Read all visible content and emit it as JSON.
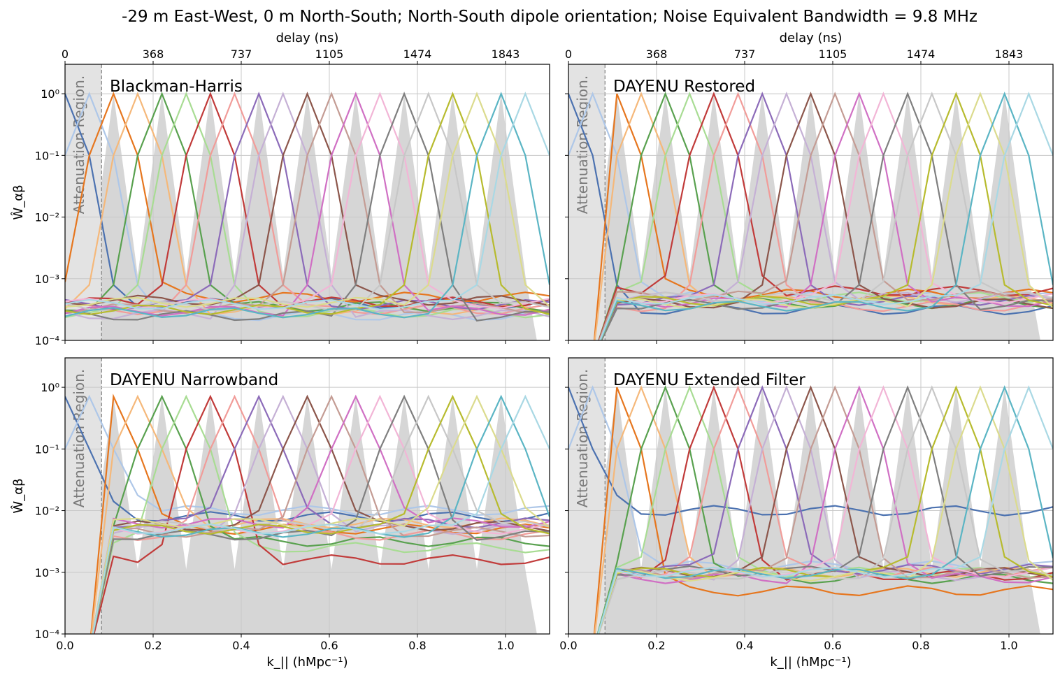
{
  "title": "-29 m East-West, 0 m North-South; North-South dipole orientation; Noise Equivalent Bandwidth = 9.8 MHz",
  "chart_data": {
    "type": "line",
    "layout": "2x2 panel grid",
    "xlabel": "k_|| (hMpc⁻¹)",
    "ylabel": "Ŵ_αβ",
    "secondary_xlabel": "delay (ns)",
    "xlim": [
      0.0,
      1.1
    ],
    "ylim": [
      0.0001,
      3.0
    ],
    "yscale": "log",
    "grid": true,
    "x_ticks": [
      "0.0",
      "0.2",
      "0.4",
      "0.6",
      "0.8",
      "1.0"
    ],
    "x_tick_values": [
      0.0,
      0.2,
      0.4,
      0.6,
      0.8,
      1.0
    ],
    "y_ticks": [
      "10⁻⁴",
      "10⁻³",
      "10⁻²",
      "10⁻¹",
      "10⁰"
    ],
    "y_tick_values": [
      -4,
      -3,
      -2,
      -1,
      0
    ],
    "delay_ticks": [
      "0",
      "368",
      "737",
      "1105",
      "1474",
      "1843"
    ],
    "delay_tick_k": [
      0.0,
      0.2,
      0.4,
      0.6,
      0.8,
      1.0
    ],
    "attenuation_label": "Attenuation Region.",
    "attenuation_k": 0.083,
    "k_bins": [
      0.0,
      0.055,
      0.11,
      0.165,
      0.22,
      0.275,
      0.33,
      0.385,
      0.44,
      0.495,
      0.55,
      0.605,
      0.66,
      0.715,
      0.77,
      0.825,
      0.88,
      0.935,
      0.99,
      1.045,
      1.1
    ],
    "series_peak_k": [
      0.0,
      0.055,
      0.11,
      0.165,
      0.22,
      0.275,
      0.33,
      0.385,
      0.44,
      0.495,
      0.55,
      0.605,
      0.66,
      0.715,
      0.77,
      0.825,
      0.88,
      0.935,
      0.99,
      1.045
    ],
    "series_colors": [
      "#4c72b0",
      "#aec7e8",
      "#e6761e",
      "#f5b87a",
      "#59a14f",
      "#a8dc93",
      "#c13b3a",
      "#f19c99",
      "#8c6bb9",
      "#c5b0d5",
      "#8c564b",
      "#c49c94",
      "#d070c4",
      "#f2b5d6",
      "#7f7f7f",
      "#c7c7c7",
      "#b7bb2e",
      "#dbdb8d",
      "#5bb5c4",
      "#a9d8e4"
    ],
    "shade_color": "#d6d6d6",
    "panels": [
      {
        "title": "Blackman-Harris",
        "peak_log10": 0.0,
        "floor_log10": [
          -3.4,
          -3.6,
          -3.3,
          -3.5,
          -3.45,
          -3.55,
          -3.38,
          -3.5,
          -3.42,
          -3.58,
          -3.35,
          -3.48,
          -3.52,
          -3.4,
          -3.6,
          -3.45,
          -3.5,
          -3.38,
          -3.55,
          -3.42
        ]
      },
      {
        "title": "DAYENU Restored",
        "peak_log10": 0.0,
        "floor_log10": [
          -3.5,
          -3.3,
          -3.25,
          -3.35,
          -3.4,
          -3.3,
          -3.2,
          -3.45,
          -3.35,
          -3.3,
          -3.4,
          -3.28,
          -3.38,
          -3.32,
          -3.42,
          -3.3,
          -3.36,
          -3.4,
          -3.44,
          -3.34
        ]
      },
      {
        "title": "DAYENU Narrowband",
        "peak_log10": -0.15,
        "floor_log10": [
          -2.1,
          -2.0,
          -2.3,
          -2.2,
          -2.5,
          -2.6,
          -2.8,
          -2.4,
          -2.2,
          -2.3,
          -2.25,
          -2.35,
          -2.2,
          -2.3,
          -2.4,
          -2.25,
          -2.3,
          -2.2,
          -2.35,
          -2.3
        ]
      },
      {
        "title": "DAYENU Extended Filter",
        "peak_log10": 0.0,
        "floor_log10": [
          -2.0,
          -2.9,
          -3.3,
          -3.0,
          -3.1,
          -3.0,
          -3.05,
          -3.0,
          -2.95,
          -3.05,
          -3.0,
          -3.02,
          -3.1,
          -3.0,
          -2.98,
          -3.04,
          -3.0,
          -3.06,
          -3.02,
          -3.0
        ]
      }
    ]
  }
}
